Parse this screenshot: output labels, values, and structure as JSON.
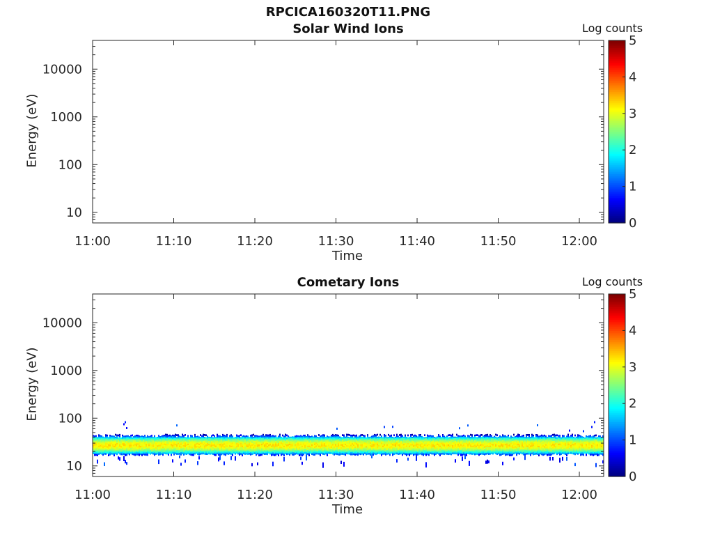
{
  "page_title": "RPCICA160320T11.PNG",
  "chart_data": [
    {
      "type": "heatmap",
      "title": "Solar Wind Ions",
      "xlabel": "Time",
      "ylabel": "Energy (eV)",
      "x_ticks": [
        "11:00",
        "11:10",
        "11:20",
        "11:30",
        "11:40",
        "11:50",
        "12:00"
      ],
      "x_range": [
        "11:00",
        "12:03"
      ],
      "y_scale": "log",
      "y_ticks": [
        10,
        100,
        1000,
        10000
      ],
      "y_tick_labels": [
        "10",
        "100",
        "1000",
        "10000"
      ],
      "ylim": [
        6,
        40000
      ],
      "colorbar": {
        "title": "Log counts",
        "range": [
          0,
          5
        ],
        "tick_labels": [
          "0",
          "1",
          "2",
          "3",
          "4",
          "5"
        ],
        "colormap": "jet"
      },
      "band": null
    },
    {
      "type": "heatmap",
      "title": "Cometary Ions",
      "xlabel": "Time",
      "ylabel": "Energy (eV)",
      "x_ticks": [
        "11:00",
        "11:10",
        "11:20",
        "11:30",
        "11:40",
        "11:50",
        "12:00"
      ],
      "x_range": [
        "11:00",
        "12:03"
      ],
      "y_scale": "log",
      "y_ticks": [
        10,
        100,
        1000,
        10000
      ],
      "y_tick_labels": [
        "10",
        "100",
        "1000",
        "10000"
      ],
      "ylim": [
        6,
        40000
      ],
      "colorbar": {
        "title": "Log counts",
        "range": [
          0,
          5
        ],
        "tick_labels": [
          "0",
          "1",
          "2",
          "3",
          "4",
          "5"
        ],
        "colormap": "jet"
      },
      "band": {
        "energy_min_eV": 17,
        "energy_max_eV": 45,
        "peak_energy_eV": 27,
        "peak_log_counts": 3.2
      }
    }
  ]
}
